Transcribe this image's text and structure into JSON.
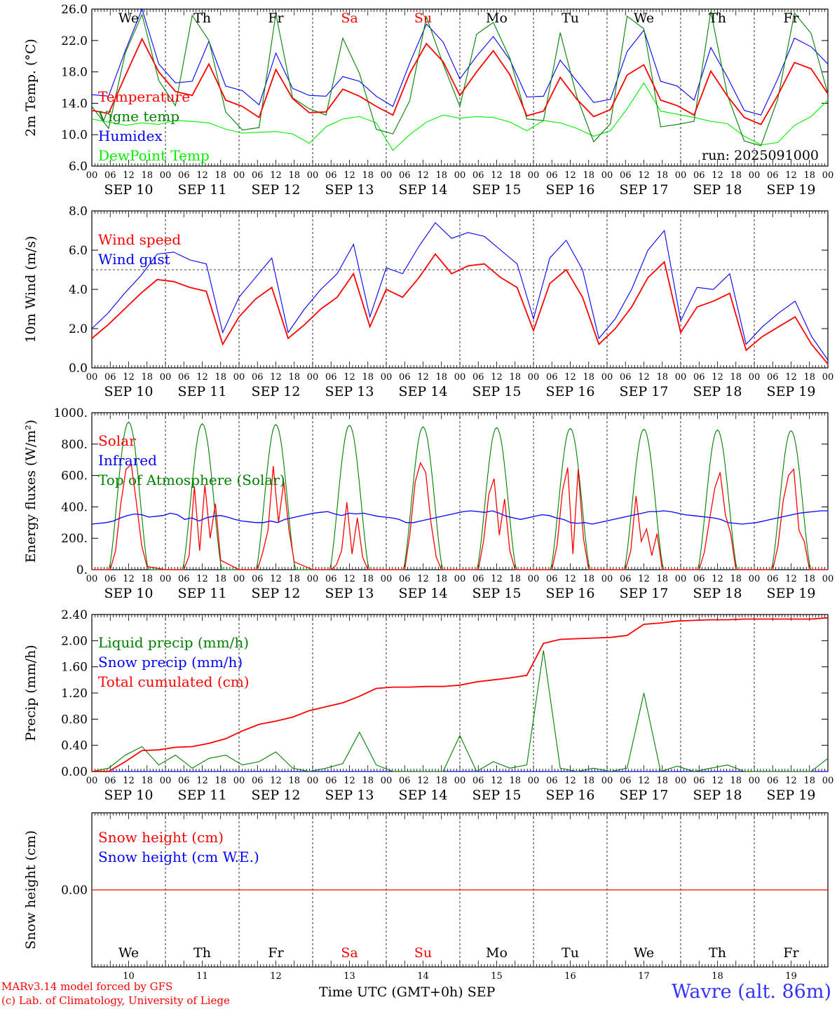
{
  "run_label": "run: 2025091000",
  "x_axis_title": "Time UTC (GMT+0h) SEP",
  "station": "Wavre (alt. 86m)",
  "credits": [
    "MARv3.14 model forced by GFS",
    "(c) Lab. of Climatology, University of Liege"
  ],
  "hour_ticks": [
    "00",
    "06",
    "12",
    "18"
  ],
  "day_labels": [
    "SEP 10",
    "SEP 11",
    "SEP 12",
    "SEP 13",
    "SEP 14",
    "SEP 15",
    "SEP 16",
    "SEP 17",
    "SEP 18",
    "SEP 19"
  ],
  "day_numbers": [
    "10",
    "11",
    "12",
    "13",
    "14",
    "15",
    "16",
    "17",
    "18",
    "19"
  ],
  "weekdays": [
    {
      "label": "We",
      "color": "#000000"
    },
    {
      "label": "Th",
      "color": "#000000"
    },
    {
      "label": "Fr",
      "color": "#000000"
    },
    {
      "label": "Sa",
      "color": "#ff0000"
    },
    {
      "label": "Su",
      "color": "#ff0000"
    },
    {
      "label": "Mo",
      "color": "#000000"
    },
    {
      "label": "Tu",
      "color": "#000000"
    },
    {
      "label": "We",
      "color": "#000000"
    },
    {
      "label": "Th",
      "color": "#000000"
    },
    {
      "label": "Fr",
      "color": "#000000"
    }
  ],
  "colors": {
    "red": "#ff0000",
    "blue": "#0000ff",
    "green": "#008000",
    "lightgreen": "#00ee00",
    "station": "#3333ff"
  },
  "chart_data": [
    {
      "type": "line",
      "ylabel": "2m Temp. (°C)",
      "ylim": [
        6,
        26
      ],
      "yticks": [
        "6.0",
        "10.0",
        "14.0",
        "18.0",
        "22.0",
        "26.0"
      ],
      "x_start": "2025-09-10 00:00",
      "x_step_hours": 6,
      "x_end": "2025-09-20 00:00",
      "series": [
        {
          "name": "Temperature",
          "color": "#ff0000",
          "values": [
            13.1,
            12.7,
            17.5,
            22.2,
            18.0,
            15.5,
            15.0,
            19.0,
            14.4,
            13.6,
            12.2,
            18.3,
            14.6,
            12.8,
            12.9,
            15.8,
            14.9,
            13.6,
            12.5,
            17.8,
            21.6,
            19.3,
            15.0,
            18.0,
            20.7,
            17.6,
            12.4,
            13.0,
            17.3,
            14.5,
            12.3,
            13.2,
            17.6,
            18.9,
            14.4,
            13.7,
            12.5,
            18.1,
            14.9,
            12.2,
            11.3,
            15.0,
            19.2,
            18.4,
            15.2
          ]
        },
        {
          "name": "Vigne temp",
          "color": "#008000",
          "values": [
            13.6,
            10.8,
            20.4,
            25.3,
            16.9,
            13.7,
            25.2,
            22.0,
            12.9,
            10.6,
            10.9,
            25.4,
            14.7,
            13.3,
            12.5,
            22.3,
            17.8,
            10.7,
            10.1,
            14.3,
            25.0,
            19.0,
            13.6,
            22.8,
            24.3,
            19.7,
            12.0,
            11.8,
            23.0,
            14.8,
            9.1,
            11.4,
            25.1,
            23.5,
            11.0,
            11.3,
            11.7,
            25.7,
            15.0,
            9.2,
            8.6,
            14.5,
            25.5,
            22.9,
            15.2
          ]
        },
        {
          "name": "Humidex",
          "color": "#0000ff",
          "values": [
            15.1,
            14.9,
            20.7,
            26.0,
            19.0,
            16.6,
            16.8,
            21.9,
            16.2,
            15.6,
            13.8,
            20.4,
            15.9,
            15.0,
            14.9,
            17.4,
            16.8,
            14.9,
            13.6,
            19.1,
            24.1,
            21.8,
            17.1,
            20.0,
            22.5,
            19.5,
            14.8,
            14.9,
            19.5,
            16.8,
            14.1,
            14.5,
            20.6,
            23.3,
            16.8,
            16.2,
            14.4,
            21.1,
            17.3,
            13.1,
            12.5,
            17.1,
            22.3,
            21.2,
            19.0
          ]
        },
        {
          "name": "DewPoint Temp",
          "color": "#00ee00",
          "values": [
            12.0,
            11.6,
            11.2,
            11.5,
            11.3,
            11.8,
            11.7,
            11.5,
            10.7,
            10.2,
            10.3,
            10.4,
            10.1,
            8.9,
            11.0,
            12.0,
            12.3,
            11.5,
            8.0,
            10.0,
            11.6,
            12.5,
            12.1,
            12.3,
            12.2,
            11.6,
            10.5,
            11.8,
            11.5,
            10.8,
            9.8,
            10.5,
            13.3,
            16.6,
            13.0,
            12.6,
            12.2,
            11.7,
            11.4,
            9.8,
            8.7,
            9.0,
            11.2,
            12.3,
            14.4
          ]
        }
      ]
    },
    {
      "type": "line",
      "ylabel": "10m Wind (m/s)",
      "ylim": [
        0,
        8
      ],
      "yticks": [
        "0.0",
        "2.0",
        "4.0",
        "6.0",
        "8.0"
      ],
      "reference_line": 5,
      "x_start": "2025-09-10 00:00",
      "x_step_hours": 6,
      "x_end": "2025-09-20 00:00",
      "series": [
        {
          "name": "Wind speed",
          "color": "#ff0000",
          "values": [
            1.5,
            2.2,
            3.0,
            3.8,
            4.5,
            4.4,
            4.1,
            3.9,
            1.2,
            2.6,
            3.5,
            4.1,
            1.5,
            2.2,
            3.0,
            3.6,
            4.8,
            2.1,
            4.0,
            3.6,
            4.6,
            5.8,
            4.8,
            5.2,
            5.3,
            4.6,
            4.1,
            1.9,
            4.3,
            5.0,
            3.6,
            1.2,
            2.0,
            3.1,
            4.6,
            5.4,
            1.8,
            3.1,
            3.4,
            3.8,
            0.9,
            1.6,
            2.1,
            2.6,
            1.2,
            0.2
          ]
        },
        {
          "name": "Wind gust",
          "color": "#0000ff",
          "values": [
            2.0,
            2.8,
            3.8,
            4.7,
            5.8,
            5.9,
            5.5,
            5.3,
            1.8,
            3.6,
            4.6,
            5.6,
            1.8,
            3.0,
            4.0,
            4.8,
            6.3,
            2.6,
            5.1,
            4.8,
            6.2,
            7.4,
            6.6,
            6.9,
            6.7,
            6.0,
            5.3,
            2.5,
            5.6,
            6.5,
            5.0,
            1.5,
            2.5,
            4.0,
            6.0,
            7.0,
            2.4,
            4.1,
            4.0,
            4.8,
            1.2,
            2.1,
            2.8,
            3.4,
            1.6,
            0.4
          ]
        }
      ]
    },
    {
      "type": "line",
      "ylabel": "Energy fluxes (W/m²)",
      "ylim": [
        0,
        1000
      ],
      "yticks": [
        "0.",
        "200.",
        "400.",
        "600.",
        "800.",
        "1000."
      ],
      "x_start": "2025-09-10 00:00",
      "x_end": "2025-09-20 00:00",
      "toa_peaks": [
        940,
        930,
        925,
        920,
        910,
        905,
        900,
        895,
        890,
        885
      ],
      "solar_daily_hourly_06_18": [
        [
          0,
          120,
          420,
          640,
          670,
          420,
          150,
          20
        ],
        [
          0,
          90,
          530,
          120,
          540,
          200,
          420,
          60
        ],
        [
          0,
          110,
          250,
          660,
          300,
          560,
          250,
          50
        ],
        [
          0,
          30,
          120,
          430,
          100,
          330,
          80,
          0
        ],
        [
          0,
          230,
          560,
          680,
          620,
          300,
          80,
          0
        ],
        [
          0,
          180,
          480,
          580,
          220,
          450,
          120,
          0
        ],
        [
          0,
          160,
          500,
          650,
          100,
          640,
          200,
          0
        ],
        [
          0,
          120,
          470,
          180,
          260,
          90,
          230,
          0
        ],
        [
          0,
          110,
          320,
          520,
          620,
          350,
          230,
          0
        ],
        [
          0,
          150,
          440,
          600,
          640,
          250,
          180,
          0
        ]
      ],
      "infrared_hourly_approx": [
        290,
        295,
        300,
        310,
        330,
        345,
        355,
        350,
        335,
        340,
        345,
        360,
        350,
        320,
        330,
        310,
        330,
        340,
        345,
        335,
        320,
        310,
        305,
        300,
        300,
        310,
        300,
        320,
        330,
        340,
        350,
        360,
        365,
        370,
        355,
        345,
        360,
        355,
        360,
        350,
        340,
        335,
        330,
        320,
        300,
        300,
        310,
        320,
        330,
        340,
        350,
        360,
        370,
        375,
        370,
        365,
        375,
        360,
        340,
        330,
        320,
        330,
        340,
        350,
        345,
        330,
        320,
        300,
        295,
        300,
        290,
        300,
        310,
        320,
        330,
        340,
        350,
        360,
        370,
        370,
        375,
        370,
        360,
        350,
        345,
        340,
        335,
        330,
        320,
        300,
        295,
        290,
        295,
        300,
        310,
        320,
        330,
        340,
        350,
        360,
        365,
        370,
        375,
        375
      ]
    },
    {
      "type": "line",
      "ylabel": "Precip (mm/h)",
      "ylim": [
        0,
        2.4
      ],
      "yticks": [
        "0.00",
        "0.40",
        "0.80",
        "1.20",
        "1.60",
        "2.00",
        "2.40"
      ],
      "x_start": "2025-09-10 00:00",
      "x_step_hours": 6,
      "x_end": "2025-09-20 00:00",
      "series": [
        {
          "name": "Liquid precip (mm/h)",
          "color": "#008000",
          "values": [
            0.0,
            0.05,
            0.25,
            0.38,
            0.1,
            0.25,
            0.05,
            0.2,
            0.25,
            0.1,
            0.15,
            0.3,
            0.05,
            0.0,
            0.05,
            0.12,
            0.6,
            0.1,
            0.0,
            0.0,
            0.0,
            0.0,
            0.55,
            0.0,
            0.15,
            0.05,
            0.1,
            1.85,
            0.05,
            0.0,
            0.05,
            0.0,
            0.05,
            1.2,
            0.0,
            0.08,
            0.0,
            0.05,
            0.1,
            0.0,
            0.0,
            0.0,
            0.0,
            0.0,
            0.2
          ]
        },
        {
          "name": "Snow precip (mm/h)",
          "color": "#0000ff",
          "values": [
            0,
            0,
            0,
            0,
            0,
            0,
            0,
            0,
            0,
            0,
            0,
            0,
            0,
            0,
            0,
            0,
            0,
            0,
            0,
            0,
            0,
            0,
            0,
            0,
            0,
            0,
            0,
            0,
            0,
            0,
            0,
            0,
            0,
            0,
            0,
            0,
            0,
            0,
            0,
            0,
            0,
            0,
            0,
            0,
            0
          ]
        },
        {
          "name": "Total cumulated (cm)",
          "color": "#ff0000",
          "values": [
            0.0,
            0.0,
            0.15,
            0.32,
            0.33,
            0.37,
            0.38,
            0.43,
            0.5,
            0.62,
            0.72,
            0.77,
            0.83,
            0.93,
            0.99,
            1.05,
            1.15,
            1.27,
            1.29,
            1.29,
            1.3,
            1.3,
            1.32,
            1.37,
            1.4,
            1.43,
            1.47,
            1.96,
            2.02,
            2.03,
            2.04,
            2.05,
            2.08,
            2.25,
            2.27,
            2.3,
            2.31,
            2.32,
            2.32,
            2.33,
            2.33,
            2.33,
            2.33,
            2.33,
            2.35
          ]
        }
      ]
    },
    {
      "type": "line",
      "ylabel": "Snow height (cm)",
      "yticks": [
        "0.00"
      ],
      "x_start": "2025-09-10 00:00",
      "x_end": "2025-09-20 00:00",
      "series": [
        {
          "name": "Snow height (cm)",
          "color": "#ff0000",
          "values": [
            0,
            0
          ]
        },
        {
          "name": "Snow height (cm W.E.)",
          "color": "#0000ff",
          "values": [
            0,
            0
          ]
        }
      ]
    }
  ]
}
